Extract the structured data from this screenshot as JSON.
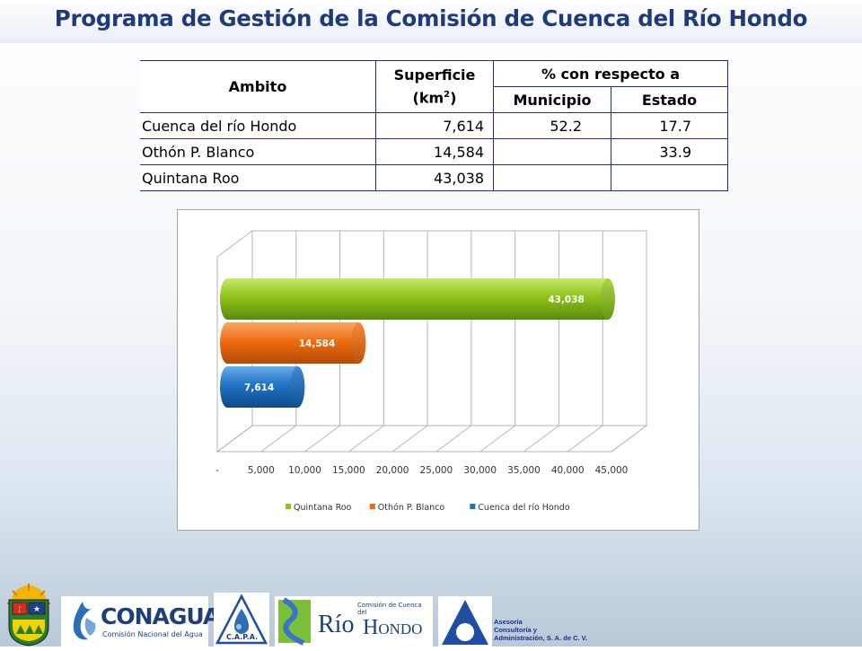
{
  "title": "Programa de Gestión de la Comisión de Cuenca del Río Hondo",
  "table": {
    "headers": {
      "ambito": "Ambito",
      "superficie_1": "Superficie",
      "superficie_2": "(km",
      "superficie_sup": "2",
      "superficie_3": ")",
      "porcentaje": "% con respecto a",
      "municipio": "Municipio",
      "estado": "Estado"
    },
    "rows": [
      {
        "ambito": "Cuenca del río Hondo",
        "superficie": "7,614",
        "municipio": "52.2",
        "estado": "17.7"
      },
      {
        "ambito": "Othón P. Blanco",
        "superficie": "14,584",
        "municipio": "",
        "estado": "33.9"
      },
      {
        "ambito": "Quintana Roo",
        "superficie": "43,038",
        "municipio": "",
        "estado": ""
      }
    ]
  },
  "chart_data": {
    "type": "bar",
    "orientation": "horizontal",
    "three_d": true,
    "categories": [
      "Cuenca del río Hondo",
      "Othón P. Blanco",
      "Quintana Roo"
    ],
    "series": [
      {
        "name": "Quintana Roo",
        "value": 43038,
        "label": "43,038",
        "color": "#8fc21b"
      },
      {
        "name": "Othón P. Blanco",
        "value": 14584,
        "label": "14,584",
        "color": "#ef6c10"
      },
      {
        "name": "Cuenca del río Hondo",
        "value": 7614,
        "label": "7,614",
        "color": "#1f72c4"
      }
    ],
    "x_ticks": [
      "-",
      "5,000",
      "10,000",
      "15,000",
      "20,000",
      "25,000",
      "30,000",
      "35,000",
      "40,000",
      "45,000"
    ],
    "xlim": [
      0,
      45000
    ],
    "grid": true,
    "legend_position": "bottom",
    "legend": [
      "Quintana Roo",
      "Othón P. Blanco",
      "Cuenca del río Hondo"
    ]
  },
  "logos": {
    "conagua": "CONAGUA",
    "conagua_sub": "Comisión Nacional del Agua",
    "capa": "C.A.P.A.",
    "comision_small": "Comisión de Cuenca del",
    "rio": "Río",
    "hondo": "Hondo",
    "asesoria_1": "Asesoría",
    "asesoria_2": "Consultoría y",
    "asesoria_3": "Administración, S. A. de C. V."
  }
}
